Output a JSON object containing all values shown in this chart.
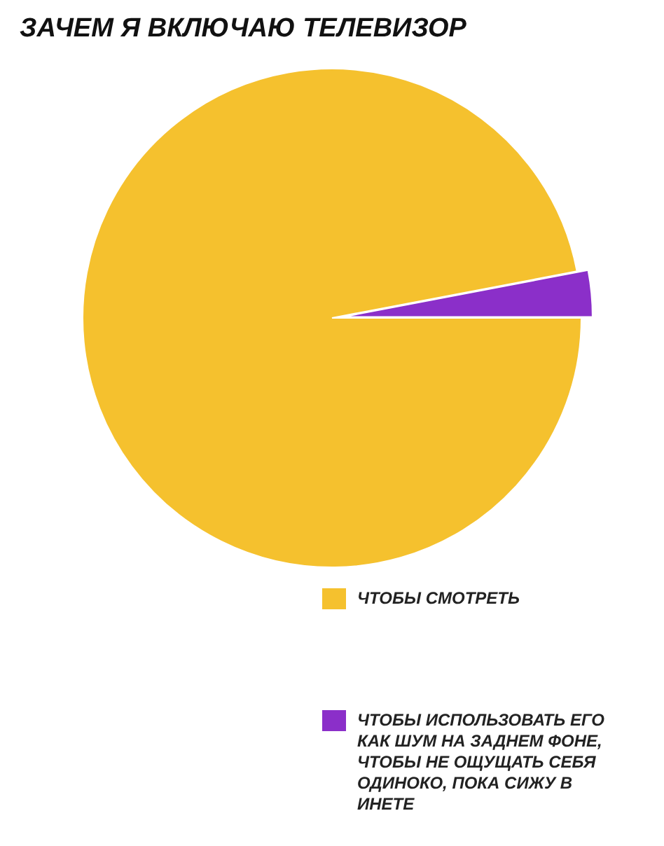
{
  "chart_data": {
    "type": "pie",
    "title": "ЗАЧЕМ Я ВКЛЮЧАЮ ТЕЛЕВИЗОР",
    "categories": [
      "ЧТОБЫ СМОТРЕТЬ",
      "ЧТОБЫ ИСПОЛЬЗОВАТЬ ЕГО КАК ШУМ НА ЗАДНЕМ ФОНЕ, ЧТОБЫ НЕ ОЩУЩАТЬ СЕБЯ ОДИНОКО, ПОКА СИЖУ В ИНЕТЕ"
    ],
    "values": [
      97,
      3
    ],
    "colors": [
      "#f5c12e",
      "#8b2fc9"
    ],
    "legend": "bottom"
  }
}
